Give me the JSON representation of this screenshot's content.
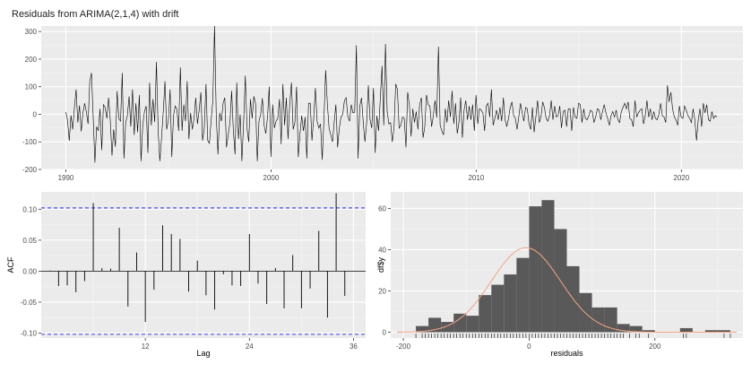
{
  "title": "Residuals from ARIMA(2,1,4) with drift",
  "colors": {
    "panel": "#EBEBEB",
    "grid_major": "#FFFFFF",
    "grid_minor": "#F4F4F4",
    "line": "#000000",
    "bar": "#595959",
    "ci": "#0000FF",
    "density": "#F4A582",
    "axis_text": "#4D4D4D"
  },
  "chart_data": [
    {
      "type": "line",
      "name": "residuals-time-series",
      "xlim": [
        1988.8,
        2023.0
      ],
      "ylim": [
        -200,
        320
      ],
      "xticks": [
        1990,
        2000,
        2010,
        2020
      ],
      "yticks": [
        -200,
        -100,
        0,
        100,
        200,
        300
      ],
      "x_start": 1990.0,
      "step": 0.0833,
      "y": [
        8,
        -22,
        -96,
        -4,
        -55,
        23,
        90,
        -30,
        32,
        -62,
        5,
        40,
        8,
        -35,
        120,
        150,
        -10,
        -175,
        -45,
        -60,
        20,
        -130,
        35,
        25,
        -15,
        60,
        -22,
        -150,
        -55,
        -118,
        84,
        -15,
        -25,
        150,
        -160,
        -30,
        -5,
        65,
        -45,
        90,
        -75,
        40,
        -65,
        70,
        -170,
        -40,
        10,
        30,
        -140,
        115,
        -40,
        55,
        -28,
        190,
        -60,
        -170,
        -85,
        10,
        120,
        -55,
        -20,
        90,
        -155,
        -5,
        30,
        18,
        -60,
        170,
        -60,
        35,
        -25,
        120,
        -90,
        5,
        -55,
        -15,
        60,
        -35,
        15,
        80,
        -95,
        -50,
        110,
        -95,
        -105,
        -22,
        50,
        320,
        -5,
        -145,
        5,
        -25,
        40,
        60,
        -120,
        -75,
        -30,
        85,
        -60,
        -145,
        115,
        -90,
        0,
        -170,
        -30,
        140,
        -50,
        -100,
        55,
        -15,
        65,
        40,
        -170,
        -25,
        0,
        58,
        -40,
        -70,
        -10,
        100,
        -155,
        35,
        -50,
        -25,
        -15,
        55,
        -108,
        110,
        -40,
        60,
        -90,
        40,
        115,
        -55,
        -30,
        100,
        -155,
        -70,
        -5,
        -60,
        -10,
        -160,
        40,
        40,
        -95,
        -15,
        95,
        -25,
        -50,
        -35,
        -165,
        -20,
        160,
        40,
        -50,
        -75,
        -100,
        -30,
        35,
        -120,
        -50,
        -10,
        0,
        50,
        60,
        -10,
        -25,
        35,
        5,
        8,
        250,
        -160,
        30,
        60,
        -30,
        -100,
        -30,
        105,
        -20,
        -50,
        95,
        -140,
        -5,
        -60,
        60,
        175,
        -40,
        255,
        10,
        -35,
        -30,
        -100,
        -50,
        110,
        90,
        -50,
        -40,
        -10,
        -15,
        -120,
        80,
        35,
        -80,
        20,
        -30,
        10,
        -55,
        35,
        60,
        -85,
        -45,
        70,
        35,
        30,
        -45,
        -5,
        50,
        -12,
        245,
        -40,
        -60,
        -75,
        20,
        -30,
        50,
        -10,
        85,
        -35,
        40,
        -70,
        -30,
        60,
        -85,
        15,
        50,
        -20,
        30,
        -20,
        35,
        -60,
        70,
        -35,
        20,
        15,
        5,
        -60,
        30,
        40,
        -10,
        90,
        -40,
        -15,
        15,
        -20,
        25,
        -25,
        60,
        -20,
        -45,
        -15,
        25,
        45,
        -5,
        -15,
        -55,
        -10,
        40,
        5,
        -25,
        25,
        20,
        -35,
        -55,
        25,
        -65,
        -10,
        50,
        -30,
        -10,
        45,
        25,
        -15,
        -25,
        -5,
        50,
        -20,
        30,
        -10,
        -5,
        30,
        -50,
        10,
        15,
        -45,
        20,
        20,
        -60,
        25,
        -10,
        -15,
        40,
        35,
        -30,
        20,
        -15,
        -20,
        -5,
        15,
        10,
        -30,
        -10,
        20,
        15,
        -20,
        10,
        35,
        5,
        -15,
        -40,
        -5,
        10,
        -10,
        15,
        -20,
        -30,
        10,
        25,
        40,
        20,
        45,
        -15,
        -20,
        -45,
        50,
        -10,
        5,
        15,
        20,
        -35,
        -5,
        50,
        -10,
        20,
        -20,
        10,
        -15,
        -20,
        0,
        40,
        -5,
        -10,
        -30,
        105,
        45,
        80,
        20,
        -10,
        -20,
        -40,
        30,
        -10,
        -15,
        30,
        15,
        -5,
        -15,
        -30,
        20,
        -20,
        -95,
        -20,
        20,
        -45,
        40,
        5,
        35,
        -20,
        -25,
        10,
        -15,
        -5,
        -10
      ]
    },
    {
      "type": "bar",
      "name": "acf",
      "xlabel": "Lag",
      "ylabel": "ACF",
      "xlim": [
        0,
        37.4
      ],
      "ylim": [
        -0.108,
        0.128
      ],
      "xticks": [
        12,
        24,
        36
      ],
      "yticks": [
        -0.1,
        -0.05,
        0.0,
        0.05,
        0.1
      ],
      "ytick_labels": [
        "-0.10",
        "-0.05",
        "0.00",
        "0.05",
        "0.10"
      ],
      "ci": 0.102,
      "lags": [
        1,
        2,
        3,
        4,
        5,
        6,
        7,
        8,
        9,
        10,
        11,
        12,
        13,
        14,
        15,
        16,
        17,
        18,
        19,
        20,
        21,
        22,
        23,
        24,
        25,
        26,
        27,
        28,
        29,
        30,
        31,
        32,
        33,
        34,
        35,
        36
      ],
      "values": [
        0.001,
        -0.024,
        -0.023,
        -0.034,
        -0.016,
        0.11,
        0.005,
        0.004,
        0.07,
        -0.057,
        0.03,
        -0.082,
        -0.03,
        0.074,
        0.06,
        0.052,
        -0.033,
        0.017,
        -0.039,
        -0.062,
        -0.005,
        -0.023,
        -0.024,
        0.06,
        -0.02,
        -0.053,
        0.005,
        -0.06,
        0.026,
        -0.06,
        -0.028,
        0.065,
        -0.075,
        0.126,
        -0.04,
        0.0
      ]
    },
    {
      "type": "bar",
      "name": "histogram",
      "xlabel": "residuals",
      "ylabel": "df$y",
      "xlim": [
        -220,
        340
      ],
      "ylim": [
        -2.8,
        68
      ],
      "xticks": [
        -200,
        0,
        200
      ],
      "yticks": [
        0,
        20,
        40,
        60
      ],
      "bin_width": 20,
      "bin_lefts": [
        -200,
        -180,
        -160,
        -140,
        -120,
        -100,
        -80,
        -60,
        -40,
        -20,
        0,
        20,
        40,
        60,
        80,
        100,
        120,
        140,
        160,
        180,
        200,
        220,
        240,
        260,
        280,
        300
      ],
      "counts": [
        0,
        3,
        7,
        5,
        9,
        8,
        18,
        23,
        28,
        36,
        61,
        64,
        50,
        32,
        19,
        12,
        12,
        4,
        3,
        1,
        0,
        0,
        2,
        0,
        1,
        1
      ],
      "density_curve": {
        "mean": -5,
        "sd": 55,
        "scale": 19.5
      },
      "rug": [
        -180,
        -170,
        -165,
        -160,
        -155,
        -150,
        -145,
        -140,
        -135,
        -130,
        -125,
        -120,
        -115,
        -110,
        -105,
        -100,
        -95,
        -90,
        -85,
        -80,
        -75,
        -70,
        -65,
        -60,
        -55,
        -50,
        -45,
        -40,
        -35,
        -30,
        -25,
        -20,
        -15,
        -10,
        -5,
        0,
        5,
        10,
        15,
        20,
        25,
        30,
        35,
        40,
        45,
        50,
        55,
        60,
        65,
        70,
        75,
        80,
        85,
        90,
        95,
        100,
        105,
        110,
        115,
        120,
        125,
        130,
        135,
        140,
        145,
        150,
        160,
        170,
        175,
        190,
        245,
        250,
        310,
        320
      ]
    }
  ]
}
